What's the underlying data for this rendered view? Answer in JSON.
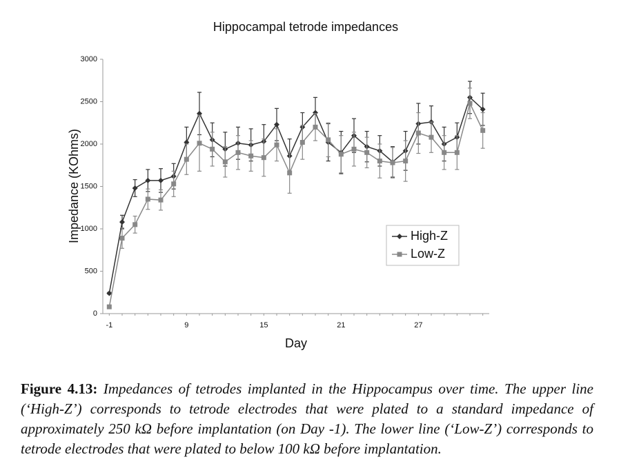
{
  "chart_data": {
    "type": "line",
    "title": "Hippocampal tetrode impedances",
    "xlabel": "Day",
    "ylabel": "Impedance (KOhms)",
    "categories": [
      -1,
      null,
      null,
      null,
      null,
      null,
      9,
      null,
      null,
      null,
      null,
      null,
      15,
      null,
      null,
      null,
      null,
      null,
      21,
      null,
      null,
      null,
      null,
      null,
      27,
      null,
      null,
      null,
      null,
      null
    ],
    "series": [
      {
        "name": "High-Z",
        "color": "#333333",
        "marker": "diamond",
        "values": [
          240,
          1080,
          1480,
          1570,
          1570,
          1620,
          2020,
          2360,
          2050,
          1940,
          2010,
          1990,
          2030,
          2230,
          1860,
          2200,
          2370,
          2020,
          1900,
          2100,
          1970,
          1920,
          1790,
          1920,
          2240,
          2260,
          2000,
          2080,
          2550,
          2410
        ],
        "errors": [
          10,
          80,
          100,
          130,
          140,
          150,
          180,
          250,
          200,
          200,
          190,
          190,
          200,
          190,
          200,
          170,
          180,
          220,
          250,
          200,
          180,
          180,
          180,
          230,
          240,
          190,
          200,
          170,
          190,
          190
        ]
      },
      {
        "name": "Low-Z",
        "color": "#888888",
        "marker": "square",
        "values": [
          80,
          890,
          1050,
          1350,
          1340,
          1530,
          1820,
          2010,
          1940,
          1790,
          1900,
          1860,
          1840,
          1990,
          1660,
          2020,
          2200,
          2050,
          1880,
          1940,
          1900,
          1800,
          1780,
          1800,
          2130,
          2080,
          1900,
          1900,
          2480,
          2160
        ],
        "errors": [
          10,
          120,
          100,
          120,
          120,
          150,
          180,
          330,
          200,
          180,
          200,
          180,
          220,
          190,
          240,
          200,
          160,
          200,
          220,
          200,
          180,
          200,
          180,
          240,
          240,
          180,
          200,
          200,
          180,
          210
        ]
      }
    ],
    "ylim": [
      0,
      3000
    ],
    "yticks": [
      0,
      500,
      1000,
      1500,
      2000,
      2500,
      3000
    ],
    "grid": false,
    "legend": "right"
  },
  "caption": {
    "label": "Figure 4.13:",
    "text": "Impedances of tetrodes implanted in the Hippocampus over time. The upper line (‘High-Z’) corresponds to tetrode electrodes that were plated to a standard impedance of approximately 250 kΩ before implantation (on Day -1). The lower line (‘Low-Z’) corresponds to tetrode electrodes that were plated to below 100 kΩ before implantation."
  }
}
